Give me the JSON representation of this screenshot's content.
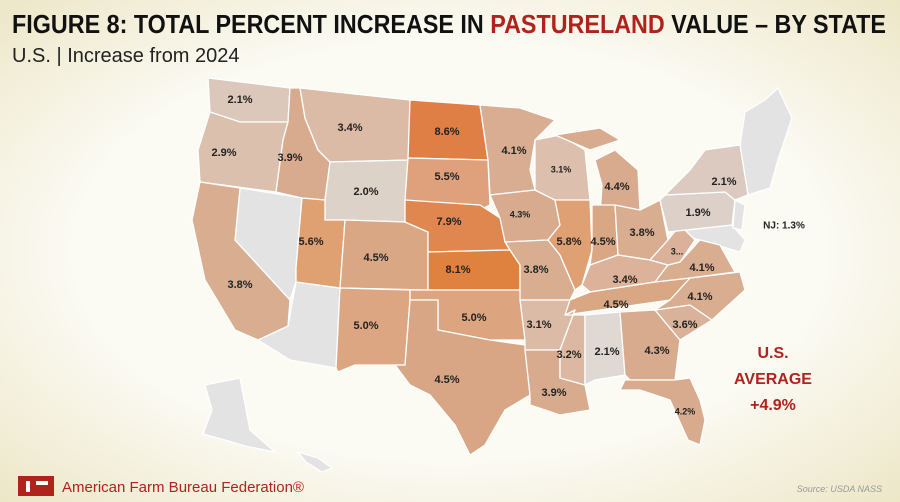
{
  "header": {
    "title": {
      "before": "FIGURE 8: TOTAL PERCENT INCREASE IN",
      "highlight": "PASTURELAND",
      "after": "VALUE – BY STATE"
    },
    "subtitle": "U.S. | Increase from 2024"
  },
  "map": {
    "no_data_color": "#e3e3e3",
    "regions": [
      {
        "label": "2.1%",
        "color": "#dcc7bb"
      },
      {
        "label": "2.9%",
        "color": "#dcc0ae"
      },
      {
        "label": "3.8%",
        "color": "#d9ad90"
      },
      {
        "label": "3.9%",
        "color": "#d9ab8e"
      },
      {
        "label": "3.4%",
        "color": "#dbbba5"
      },
      {
        "label": "2.0%",
        "color": "#ddd2c8"
      },
      {
        "label": "5.6%",
        "color": "#dfa072"
      },
      {
        "label": "4.5%",
        "color": "#d9a784"
      },
      {
        "label": "5.0%",
        "color": "#dca682"
      },
      {
        "label": "8.6%",
        "color": "#e07f45"
      },
      {
        "label": "5.5%",
        "color": "#dea17c"
      },
      {
        "label": "7.9%",
        "color": "#e0874f"
      },
      {
        "label": "8.1%",
        "color": "#e0823f"
      },
      {
        "label": "5.0%",
        "color": "#dca47f"
      },
      {
        "label": "4.5%",
        "color": "#d9a685"
      },
      {
        "label": "4.1%",
        "color": "#d8ad91"
      },
      {
        "label": "4.3%",
        "color": "#d9ab8e"
      },
      {
        "label": "3.8%",
        "color": "#d9ad90"
      },
      {
        "label": "3.1%",
        "color": "#dcbba6"
      },
      {
        "label": "3.9%",
        "color": "#d9ab8e"
      },
      {
        "label": "3.1%",
        "color": "#ddbfad"
      },
      {
        "label": "5.8%",
        "color": "#dfa074"
      },
      {
        "label": "4.4%",
        "color": "#d9ab8e"
      },
      {
        "label": "4.5%",
        "color": "#d9a784"
      },
      {
        "label": "3.8%",
        "color": "#d9ad90"
      },
      {
        "label": "3.4%",
        "color": "#dcb39a"
      },
      {
        "label": "4.5%",
        "color": "#d9a784"
      },
      {
        "label": "3.2%",
        "color": "#dcb8a2"
      },
      {
        "label": "2.1%",
        "color": "#e0d8d2"
      },
      {
        "label": "4.3%",
        "color": "#d9ab8e"
      },
      {
        "label": "4.2%",
        "color": "#d9ab8e"
      },
      {
        "label": "3.6%",
        "color": "#dab29a"
      },
      {
        "label": "4.1%",
        "color": "#d9ad90"
      },
      {
        "label": "4.1%",
        "color": "#d9ad90"
      },
      {
        "label": "3...",
        "color": "#dbb299"
      },
      {
        "label": "1.9%",
        "color": "#dcd0c9"
      },
      {
        "label": "2.1%",
        "color": "#dccac1"
      }
    ],
    "nj_note": "NJ: 1.3%",
    "average": {
      "line1": "U.S.",
      "line2": "AVERAGE",
      "line3": "+4.9%"
    }
  },
  "footer": {
    "organization": "American Farm Bureau Federation®",
    "source": "Source: USDA NASS"
  }
}
